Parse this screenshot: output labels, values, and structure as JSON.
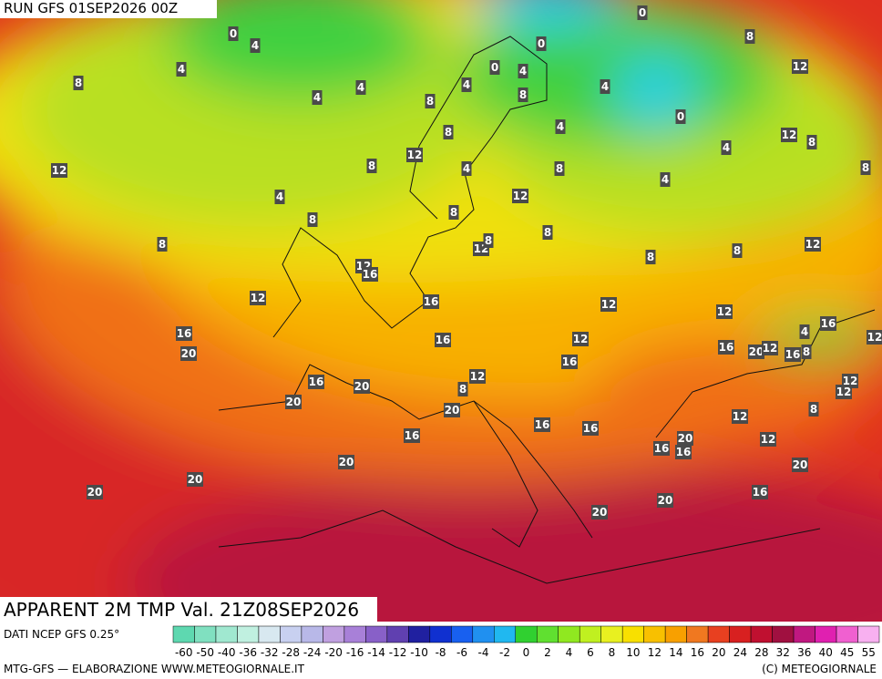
{
  "header": {
    "run": "RUN GFS 01SEP2026 00Z"
  },
  "map": {
    "field_title": "APPARENT 2M TMP Val. 21Z08SEP2026",
    "labels": [
      0,
      4,
      4,
      8,
      4,
      4,
      8,
      0,
      8,
      12,
      0,
      0,
      4,
      4,
      8,
      4,
      0,
      4,
      8,
      12,
      8,
      4,
      12,
      8,
      12,
      4,
      8,
      4,
      8,
      4,
      12,
      8,
      8,
      8,
      12,
      8,
      8,
      8,
      8,
      12,
      12,
      16,
      12,
      16,
      12,
      12,
      16,
      16,
      12,
      16,
      4,
      12,
      16,
      20,
      12,
      16,
      8,
      20,
      16,
      12,
      16,
      20,
      8,
      12,
      12,
      20,
      20,
      8,
      12,
      16,
      16,
      16,
      20,
      12,
      16,
      16,
      20,
      20,
      20,
      20,
      16,
      20,
      20
    ]
  },
  "legend": {
    "source": "DATI NCEP GFS 0.25°",
    "ticks": [
      -60,
      -50,
      -40,
      -36,
      -32,
      -28,
      -24,
      -20,
      -16,
      -14,
      -12,
      -10,
      -8,
      -6,
      -4,
      -2,
      0,
      2,
      4,
      6,
      8,
      10,
      12,
      14,
      16,
      20,
      24,
      28,
      32,
      36,
      40,
      45,
      55
    ],
    "colors": [
      "#5ed8b0",
      "#80e0c0",
      "#a0e8d0",
      "#c0f0e0",
      "#d8e8f0",
      "#c8d0f0",
      "#b8b8e8",
      "#c0a0e0",
      "#a880d8",
      "#8860c8",
      "#6040b0",
      "#2020a0",
      "#1030d0",
      "#1860f0",
      "#2090f0",
      "#20b8f0",
      "#30d030",
      "#60e030",
      "#90e820",
      "#c0f020",
      "#e8f020",
      "#f8e000",
      "#f8c000",
      "#f8a000",
      "#f07820",
      "#e84020",
      "#d82020",
      "#c01030",
      "#a01040",
      "#c01880",
      "#e020b0",
      "#f060d0",
      "#f8b0f0"
    ]
  },
  "footer": {
    "credit": "MTG-GFS — ELABORAZIONE WWW.METEOGIORNALE.IT",
    "copyright": "(C) METEOGIORNALE"
  }
}
